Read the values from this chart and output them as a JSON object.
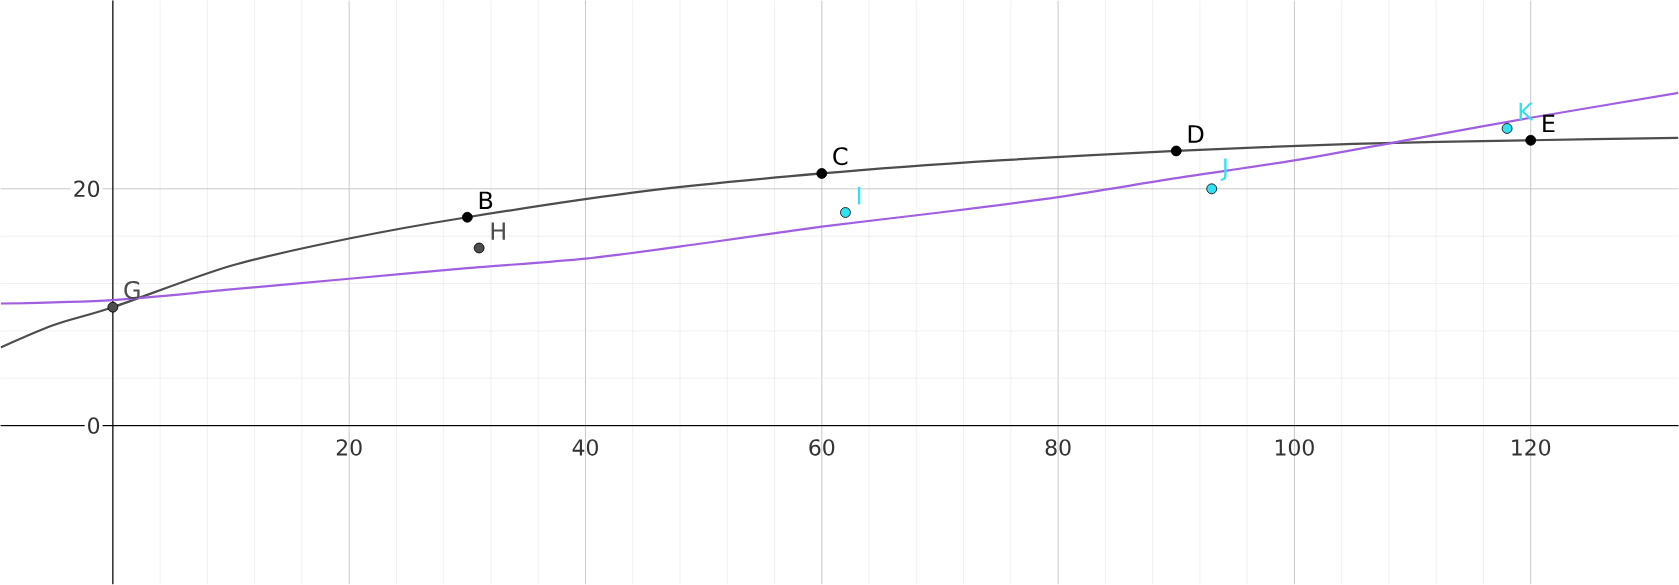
{
  "chart_data": {
    "type": "scatter",
    "xlim": [
      -9.5,
      132.5
    ],
    "ylim": [
      -13.4,
      35.9
    ],
    "xticks": [
      {
        "value": 0,
        "label": null
      },
      20,
      40,
      60,
      80,
      100,
      120
    ],
    "yticks": [
      0,
      20
    ],
    "grid": true,
    "series": [
      {
        "type": "line",
        "marker": "none",
        "color": "#4d4d4d",
        "x": [
          -9.5,
          -5,
          0,
          10,
          20,
          30,
          45,
          60,
          75,
          90,
          105,
          120,
          132.5
        ],
        "values": [
          6.6,
          8.5,
          10,
          13.5,
          15.8,
          17.6,
          19.8,
          21.3,
          22.4,
          23.2,
          23.8,
          24.1,
          24.3
        ]
      },
      {
        "type": "line",
        "marker": "none",
        "color": "#a05fe0",
        "x": [
          -9.5,
          0,
          10,
          20,
          30,
          40,
          50,
          60,
          70,
          80,
          90,
          100,
          110,
          120,
          132.5
        ],
        "values": [
          10.3,
          10.6,
          11.5,
          12.4,
          13.3,
          14.1,
          15.4,
          16.8,
          18.0,
          19.3,
          20.9,
          22.4,
          24.2,
          26.0,
          28.1
        ]
      },
      {
        "type": "scatter",
        "marker": "circle",
        "color": "#4d4d4d",
        "x": [
          0,
          31
        ],
        "values": [
          10.0,
          15.0
        ]
      },
      {
        "type": "scatter",
        "marker": "circle",
        "color": "#000000",
        "x": [
          30,
          60,
          90,
          120
        ],
        "values": [
          17.6,
          21.3,
          23.2,
          24.1
        ]
      },
      {
        "type": "scatter",
        "marker": "circle",
        "color": "#33e0f0",
        "x": [
          62,
          93,
          118
        ],
        "values": [
          18.0,
          20.0,
          25.1
        ]
      }
    ],
    "annotations": [
      {
        "text": "G",
        "x": 0,
        "y": 10.0
      },
      {
        "text": "B",
        "x": 30,
        "y": 17.6
      },
      {
        "text": "H",
        "x": 31,
        "y": 15.0
      },
      {
        "text": "C",
        "x": 60,
        "y": 21.3
      },
      {
        "text": "I",
        "x": 62,
        "y": 18.0
      },
      {
        "text": "D",
        "x": 90,
        "y": 23.2
      },
      {
        "text": "J",
        "x": 93,
        "y": 20.0
      },
      {
        "text": "K",
        "x": 118,
        "y": 25.1
      },
      {
        "text": "E",
        "x": 120,
        "y": 24.1
      }
    ]
  }
}
